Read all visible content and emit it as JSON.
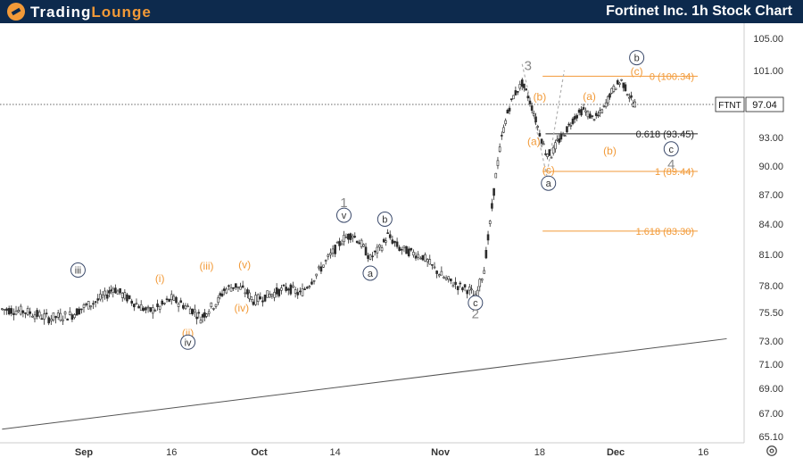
{
  "header": {
    "brand_part1": "Trading",
    "brand_part2": "Lounge",
    "title": "Fortinet Inc. 1h Stock Chart"
  },
  "chart_data": {
    "type": "candlestick",
    "symbol": "FTNT",
    "current_price": "97.04",
    "y_ticks": [
      "105.00",
      "101.00",
      "97.04",
      "93.00",
      "90.00",
      "87.00",
      "84.00",
      "81.00",
      "78.00",
      "75.50",
      "73.00",
      "71.00",
      "69.00",
      "67.00",
      "65.10"
    ],
    "x_ticks": [
      "Sep",
      "16",
      "Oct",
      "14",
      "Nov",
      "18",
      "Dec",
      "16"
    ],
    "price_path": [
      [
        -14,
        75.8
      ],
      [
        -10,
        75.6
      ],
      [
        -6,
        75.0
      ],
      [
        -2,
        75.3
      ],
      [
        0,
        76.0
      ],
      [
        2,
        76.5
      ],
      [
        4,
        77.2
      ],
      [
        5,
        77.8
      ],
      [
        7,
        77.0
      ],
      [
        9,
        76.3
      ],
      [
        11,
        75.6
      ],
      [
        13,
        76.0
      ],
      [
        15,
        76.8
      ],
      [
        17,
        76.2
      ],
      [
        19,
        75.6
      ],
      [
        20,
        75.0
      ],
      [
        21,
        75.6
      ],
      [
        23,
        76.6
      ],
      [
        24,
        77.6
      ],
      [
        26,
        78.0
      ],
      [
        28,
        77.3
      ],
      [
        29,
        76.6
      ],
      [
        31,
        77.0
      ],
      [
        33,
        77.4
      ],
      [
        35,
        77.8
      ],
      [
        37,
        77.2
      ],
      [
        39,
        78.5
      ],
      [
        41,
        80.0
      ],
      [
        43,
        81.5
      ],
      [
        44.5,
        82.6
      ],
      [
        46,
        83.0
      ],
      [
        47.5,
        82.0
      ],
      [
        49,
        80.6
      ],
      [
        51,
        81.8
      ],
      [
        52,
        82.9
      ],
      [
        54,
        81.6
      ],
      [
        56,
        81.2
      ],
      [
        58,
        80.8
      ],
      [
        60,
        79.6
      ],
      [
        62,
        78.6
      ],
      [
        64,
        78.0
      ],
      [
        66,
        77.6
      ],
      [
        67,
        76.8
      ],
      [
        68.5,
        79.6
      ],
      [
        69.5,
        84.0
      ],
      [
        70.5,
        89.0
      ],
      [
        71.5,
        93.0
      ],
      [
        72.5,
        96.0
      ],
      [
        73.5,
        98.0
      ],
      [
        75,
        99.5
      ],
      [
        76,
        98.0
      ],
      [
        77,
        96.0
      ],
      [
        78,
        93.5
      ],
      [
        79,
        91.5
      ],
      [
        80,
        91.2
      ],
      [
        81,
        92.5
      ],
      [
        82,
        93.2
      ],
      [
        83,
        94.4
      ],
      [
        84,
        95.5
      ],
      [
        85.5,
        96.4
      ],
      [
        87,
        95.4
      ],
      [
        88,
        95.6
      ],
      [
        89,
        96.6
      ],
      [
        90,
        98.2
      ],
      [
        91,
        99.2
      ],
      [
        92,
        99.8
      ],
      [
        93,
        98.5
      ],
      [
        94,
        97.2
      ],
      [
        94.6,
        97.0
      ]
    ],
    "fibonacci": [
      {
        "label": "0 (100.34)",
        "value": 100.34,
        "color": "#f29a38"
      },
      {
        "label": "0.618 (93.45)",
        "value": 93.45,
        "color": "#222222"
      },
      {
        "label": "1 (89.44)",
        "value": 89.44,
        "color": "#f29a38"
      },
      {
        "label": "1.618 (83.30)",
        "value": 83.3,
        "color": "#f29a38"
      }
    ],
    "wave_labels": [
      {
        "text": "iii",
        "day": -1,
        "price": 79.5,
        "circle": true,
        "color": "#444444"
      },
      {
        "text": "(i)",
        "day": 13,
        "price": 78.7,
        "circle": false,
        "color": "#f29a38"
      },
      {
        "text": "(iii)",
        "day": 21,
        "price": 79.9,
        "circle": false,
        "color": "#f29a38"
      },
      {
        "text": "(v)",
        "day": 27.5,
        "price": 80.0,
        "circle": false,
        "color": "#f29a38"
      },
      {
        "text": "(iv)",
        "day": 27,
        "price": 75.9,
        "circle": false,
        "color": "#f29a38"
      },
      {
        "text": "(ii)",
        "day": 17.8,
        "price": 73.7,
        "circle": false,
        "color": "#f29a38"
      },
      {
        "text": "iv",
        "day": 17.8,
        "price": 72.9,
        "circle": true,
        "color": "#444444"
      },
      {
        "text": "1",
        "day": 44.5,
        "price": 86.1,
        "circle": false,
        "color": "#888888"
      },
      {
        "text": "v",
        "day": 44.5,
        "price": 84.9,
        "circle": true,
        "color": "#444444"
      },
      {
        "text": "b",
        "day": 51.5,
        "price": 84.5,
        "circle": true,
        "color": "#444444"
      },
      {
        "text": "a",
        "day": 49,
        "price": 79.2,
        "circle": true,
        "color": "#444444"
      },
      {
        "text": "c",
        "day": 67,
        "price": 76.4,
        "circle": true,
        "color": "#444444"
      },
      {
        "text": "2",
        "day": 67,
        "price": 75.3,
        "circle": false,
        "color": "#888888"
      },
      {
        "text": "3",
        "day": 76,
        "price": 101.5,
        "circle": false,
        "color": "#888888"
      },
      {
        "text": "(b)",
        "day": 78,
        "price": 97.9,
        "circle": false,
        "color": "#f29a38"
      },
      {
        "text": "(a)",
        "day": 77,
        "price": 92.6,
        "circle": false,
        "color": "#f29a38"
      },
      {
        "text": "(c)",
        "day": 79.5,
        "price": 89.6,
        "circle": false,
        "color": "#f29a38"
      },
      {
        "text": "a",
        "day": 79.5,
        "price": 88.2,
        "circle": true,
        "color": "#444444"
      },
      {
        "text": "(a)",
        "day": 86.5,
        "price": 98.0,
        "circle": false,
        "color": "#f29a38"
      },
      {
        "text": "(b)",
        "day": 90,
        "price": 91.6,
        "circle": false,
        "color": "#f29a38"
      },
      {
        "text": "b",
        "day": 94.6,
        "price": 102.6,
        "circle": true,
        "color": "#444444"
      },
      {
        "text": "(c)",
        "day": 94.6,
        "price": 100.9,
        "circle": false,
        "color": "#f29a38"
      },
      {
        "text": "c",
        "day": 100.5,
        "price": 91.8,
        "circle": true,
        "color": "#444444"
      },
      {
        "text": "4",
        "day": 100.5,
        "price": 90.1,
        "circle": false,
        "color": "#888888"
      }
    ],
    "trendline": {
      "start": [
        -14,
        65.7
      ],
      "end": [
        110,
        73.2
      ]
    },
    "colors": {
      "candle": "#2b2b2b",
      "fib_orange": "#f29a38",
      "fib_black": "#222222",
      "trendline": "#555555",
      "projection": "#b0b0b0"
    }
  }
}
